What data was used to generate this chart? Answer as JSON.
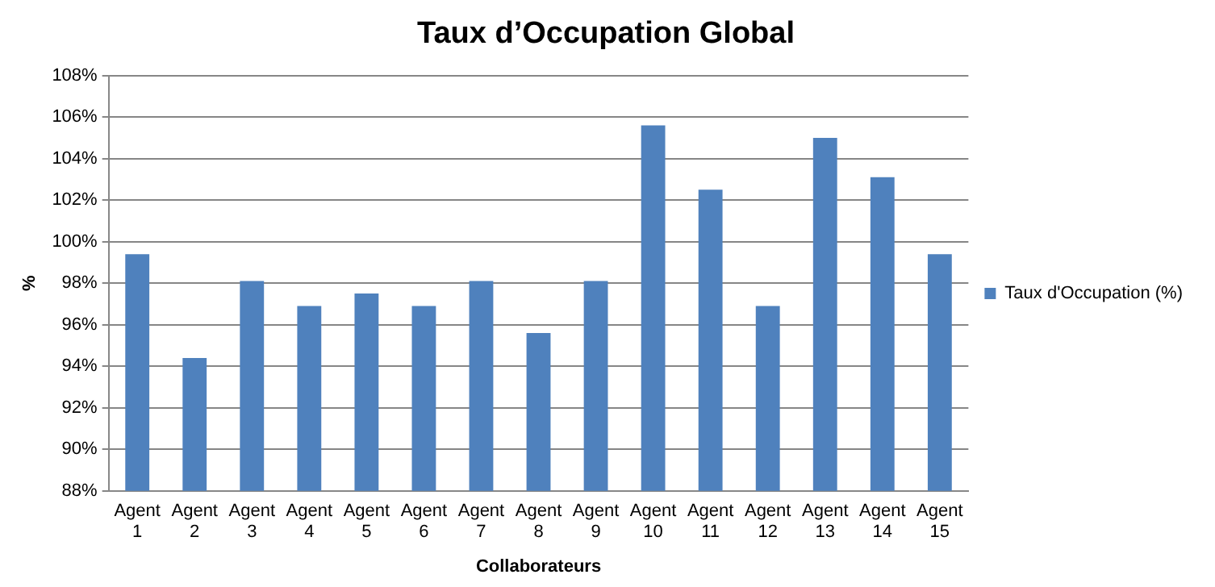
{
  "chart_data": {
    "type": "bar",
    "title": "Taux d’Occupation Global",
    "xlabel": "Collaborateurs",
    "ylabel": "%",
    "categories": [
      "Agent 1",
      "Agent 2",
      "Agent 3",
      "Agent 4",
      "Agent 5",
      "Agent 6",
      "Agent 7",
      "Agent 8",
      "Agent 9",
      "Agent 10",
      "Agent 11",
      "Agent 12",
      "Agent 13",
      "Agent 14",
      "Agent 15"
    ],
    "series": [
      {
        "name": "Taux d'Occupation (%)",
        "color": "#4f81bd",
        "values": [
          99.4,
          94.4,
          98.1,
          96.9,
          97.5,
          96.9,
          98.1,
          95.6,
          98.1,
          105.6,
          102.5,
          96.9,
          105.0,
          103.1,
          99.4
        ]
      }
    ],
    "ylim": [
      88,
      108
    ],
    "yticks": [
      {
        "value": 88,
        "label": "88%"
      },
      {
        "value": 90,
        "label": "90%"
      },
      {
        "value": 92,
        "label": "92%"
      },
      {
        "value": 94,
        "label": "94%"
      },
      {
        "value": 96,
        "label": "96%"
      },
      {
        "value": 98,
        "label": "98%"
      },
      {
        "value": 100,
        "label": "100%"
      },
      {
        "value": 102,
        "label": "102%"
      },
      {
        "value": 104,
        "label": "104%"
      },
      {
        "value": 106,
        "label": "106%"
      },
      {
        "value": 108,
        "label": "108%"
      }
    ],
    "grid": "y",
    "legend": "right"
  }
}
